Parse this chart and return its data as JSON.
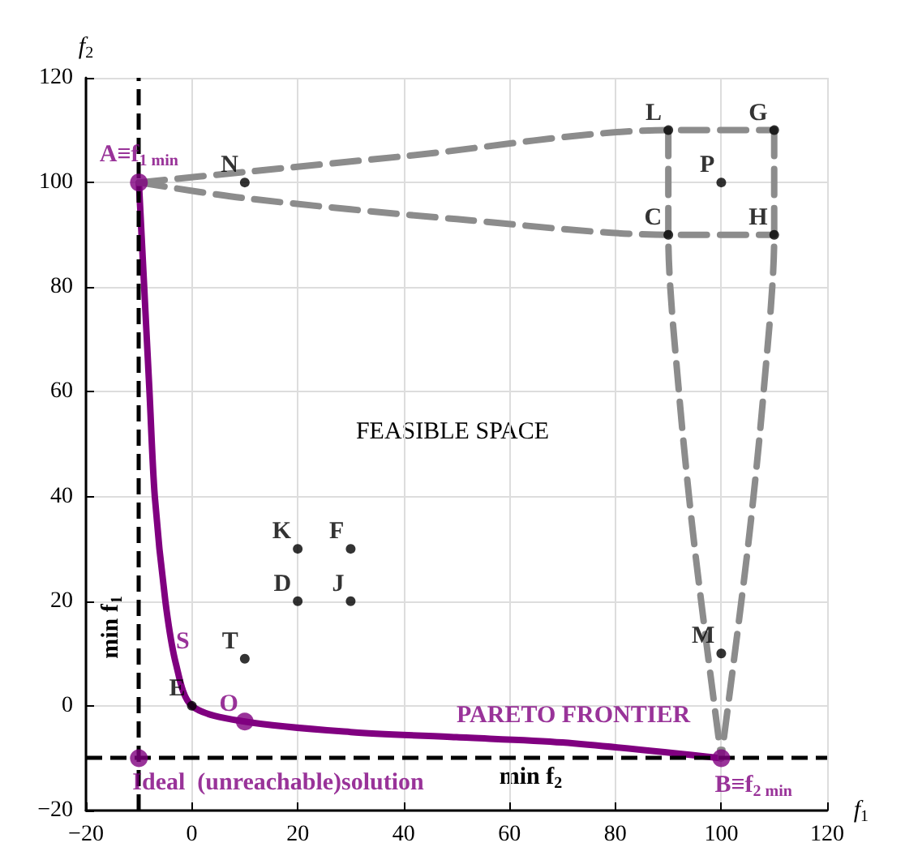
{
  "chart_data": {
    "type": "scatter",
    "xlabel": "f$_{1}$",
    "ylabel": "f$_{2}$",
    "xlim": [
      -20,
      120
    ],
    "xticks": [
      -20,
      0,
      20,
      40,
      60,
      80,
      100,
      120
    ],
    "ylim": [
      -20,
      120
    ],
    "yticks": [
      -20,
      0,
      20,
      40,
      60,
      80,
      100,
      120
    ],
    "grid": true,
    "marker": "circle",
    "series": [
      {
        "color": "#800080",
        "x": [
          -10,
          10,
          100,
          -10
        ],
        "values": [
          100,
          -3,
          -10,
          -10
        ]
      },
      {
        "color": "#000000",
        "x": [
          10,
          100,
          90,
          110,
          90,
          110,
          100,
          20,
          30,
          20,
          30,
          10,
          0
        ],
        "values": [
          100,
          100,
          110,
          110,
          90,
          90,
          10,
          30,
          30,
          20,
          20,
          9,
          0
        ]
      },
      {
        "type": "line",
        "color": "#800080",
        "marker": "none",
        "x": [
          -10,
          -9,
          -8,
          -7,
          -5,
          -3,
          0,
          10,
          30,
          50,
          70,
          100
        ],
        "values": [
          100,
          80,
          60,
          40,
          20,
          8,
          0,
          -3,
          -5,
          -6,
          -7,
          -10
        ]
      },
      {
        "type": "line",
        "color": "#8c8c8c",
        "marker": "none",
        "line_style": "dashed",
        "x": [
          -10,
          10,
          40,
          90,
          110
        ],
        "values": [
          100,
          102,
          105,
          110,
          110
        ]
      },
      {
        "type": "line",
        "color": "#8c8c8c",
        "marker": "none",
        "line_style": "dashed",
        "x": [
          -10,
          10,
          50,
          90,
          110
        ],
        "values": [
          100,
          97,
          93,
          90,
          90
        ]
      },
      {
        "type": "line",
        "color": "#8c8c8c",
        "marker": "none",
        "line_style": "dashed",
        "x": [
          90,
          90,
          92,
          95,
          100
        ],
        "values": [
          110,
          90,
          60,
          30,
          -10
        ]
      },
      {
        "type": "line",
        "color": "#8c8c8c",
        "marker": "none",
        "line_style": "dashed",
        "x": [
          110,
          110,
          108,
          105,
          100
        ],
        "values": [
          110,
          90,
          60,
          30,
          -10
        ]
      }
    ],
    "ref_lines": [
      {
        "axis": "x",
        "value": -10,
        "label": "min f$_{1}$",
        "color": "#000000",
        "line_style": "dashed"
      },
      {
        "axis": "y",
        "value": -10,
        "label": "min f$_{2}$",
        "color": "#000000",
        "line_style": "dashed"
      }
    ],
    "annotations": [
      {
        "text": "A≡f$_{1 min}$",
        "x": -10,
        "y": 100
      },
      {
        "text": "B≡f$_{2 min}$",
        "x": 100,
        "y": -10
      },
      {
        "text": "O",
        "x": 10,
        "y": -3
      },
      {
        "text": "Ideal  (unreachable)solution",
        "x": -10,
        "y": -10
      },
      {
        "text": "N",
        "x": 10,
        "y": 100
      },
      {
        "text": "P",
        "x": 100,
        "y": 100
      },
      {
        "text": "L",
        "x": 90,
        "y": 110
      },
      {
        "text": "G",
        "x": 110,
        "y": 110
      },
      {
        "text": "C",
        "x": 90,
        "y": 90
      },
      {
        "text": "H",
        "x": 110,
        "y": 90
      },
      {
        "text": "M",
        "x": 100,
        "y": 10
      },
      {
        "text": "K",
        "x": 20,
        "y": 30
      },
      {
        "text": "F",
        "x": 30,
        "y": 30
      },
      {
        "text": "D",
        "x": 20,
        "y": 20
      },
      {
        "text": "J",
        "x": 30,
        "y": 20
      },
      {
        "text": "T",
        "x": 10,
        "y": 9
      },
      {
        "text": "E",
        "x": 0,
        "y": 0
      },
      {
        "text": "S",
        "x": -3,
        "y": 8
      },
      {
        "text": "PARETO FRONTIER",
        "x": 50,
        "y": -6
      },
      "FEASIBLE SPACE"
    ]
  }
}
